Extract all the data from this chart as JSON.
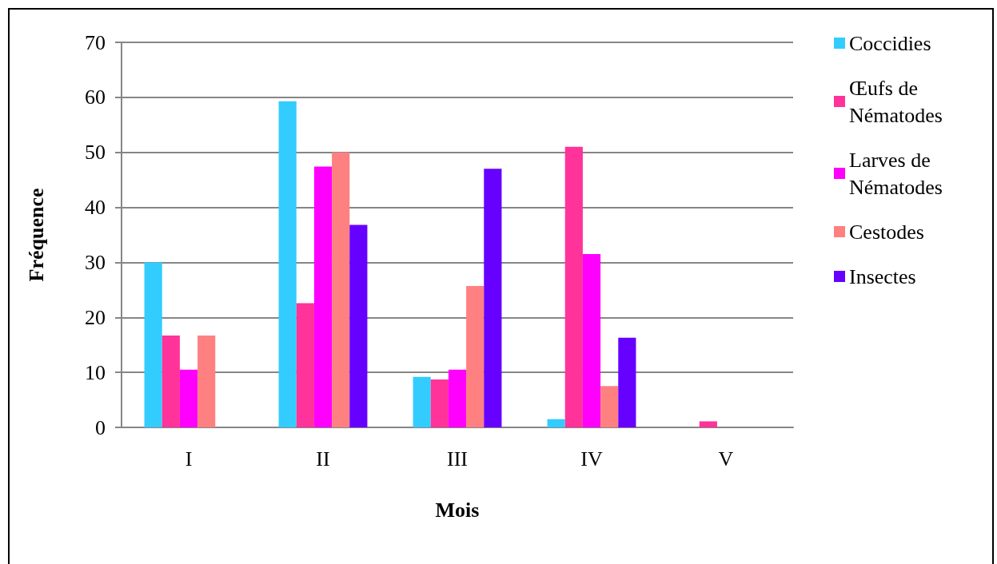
{
  "chart_data": {
    "type": "bar",
    "xlabel": "Mois",
    "ylabel": "Fréquence",
    "categories": [
      "I",
      "II",
      "III",
      "IV",
      "V"
    ],
    "series": [
      {
        "name": "Coccidies",
        "color": "#33ccff",
        "values": [
          30,
          59.3,
          9.2,
          1.5,
          0
        ]
      },
      {
        "name": "Œufs de Nématodes",
        "color": "#ff3399",
        "values": [
          16.7,
          22.6,
          8.7,
          51,
          1.1
        ]
      },
      {
        "name": "Larves de Nématodes",
        "color": "#ff00ff",
        "values": [
          10.5,
          47.4,
          10.5,
          31.5,
          0
        ]
      },
      {
        "name": "Cestodes",
        "color": "#ff8080",
        "values": [
          16.7,
          50,
          25.7,
          7.5,
          0
        ]
      },
      {
        "name": "Insectes",
        "color": "#6600ff",
        "values": [
          0,
          36.8,
          47,
          16.3,
          0
        ]
      }
    ],
    "ylim": [
      0,
      70
    ],
    "yticks": [
      0,
      10,
      20,
      30,
      40,
      50,
      60,
      70
    ],
    "grid": "y",
    "legend": "right"
  }
}
